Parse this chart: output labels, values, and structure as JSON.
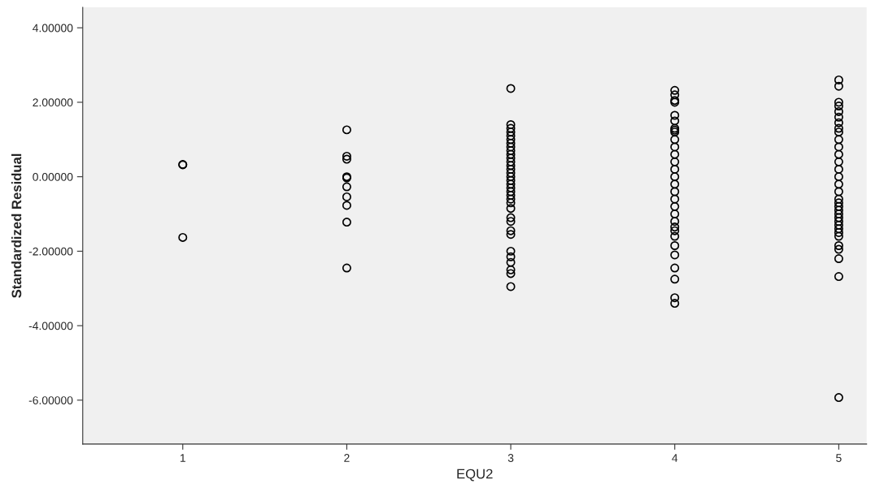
{
  "chart_data": {
    "type": "scatter",
    "xlabel": "EQU2",
    "ylabel": "Standardized Residual",
    "x": [
      1,
      1,
      1,
      2,
      2,
      2,
      2,
      2,
      2,
      2,
      2,
      2,
      2,
      3,
      3,
      3,
      3,
      3,
      3,
      3,
      3,
      3,
      3,
      3,
      3,
      3,
      3,
      3,
      3,
      3,
      3,
      3,
      3,
      3,
      3,
      3,
      3,
      3,
      3,
      3,
      3,
      3,
      3,
      3,
      3,
      3,
      3,
      4,
      4,
      4,
      4,
      4,
      4,
      4,
      4,
      4,
      4,
      4,
      4,
      4,
      4,
      4,
      4,
      4,
      4,
      4,
      4,
      4,
      4,
      4,
      4,
      4,
      4,
      4,
      4,
      4,
      4,
      5,
      5,
      5,
      5,
      5,
      5,
      5,
      5,
      5,
      5,
      5,
      5,
      5,
      5,
      5,
      5,
      5,
      5,
      5,
      5,
      5,
      5,
      5,
      5,
      5,
      5,
      5,
      5,
      5,
      5,
      5,
      5,
      5
    ],
    "values": [
      0.33,
      0.32,
      -1.63,
      1.26,
      0.55,
      0.47,
      0.0,
      -0.03,
      -0.27,
      -0.54,
      -0.77,
      -1.22,
      -2.45,
      2.37,
      1.4,
      1.3,
      1.2,
      1.1,
      1.0,
      0.9,
      0.8,
      0.7,
      0.6,
      0.5,
      0.4,
      0.3,
      0.2,
      0.1,
      0.0,
      -0.1,
      -0.2,
      -0.3,
      -0.4,
      -0.5,
      -0.6,
      -0.7,
      -0.85,
      -1.1,
      -1.2,
      -1.45,
      -1.55,
      -2.0,
      -2.15,
      -2.3,
      -2.5,
      -2.6,
      -2.95,
      2.32,
      2.2,
      2.05,
      2.0,
      1.65,
      1.5,
      1.3,
      1.25,
      1.2,
      1.0,
      0.8,
      0.6,
      0.4,
      0.2,
      0.0,
      -0.2,
      -0.4,
      -0.6,
      -0.8,
      -1.0,
      -1.2,
      -1.35,
      -1.45,
      -1.6,
      -1.85,
      -2.1,
      -2.45,
      -2.75,
      -3.25,
      -3.4,
      2.6,
      2.43,
      2.0,
      1.9,
      1.75,
      1.6,
      1.45,
      1.3,
      1.2,
      1.0,
      0.8,
      0.6,
      0.4,
      0.2,
      0.0,
      -0.2,
      -0.4,
      -0.6,
      -0.7,
      -0.8,
      -0.9,
      -1.0,
      -1.1,
      -1.2,
      -1.3,
      -1.4,
      -1.5,
      -1.6,
      -1.85,
      -1.95,
      -2.2,
      -2.68,
      -5.93
    ],
    "color": "#000000",
    "marker": "circle",
    "xlim": [
      0.39,
      5.17
    ],
    "xticks": [
      1,
      2,
      3,
      4,
      5
    ],
    "ylim": [
      -7.18,
      4.55
    ],
    "yticks": [
      {
        "value": -6,
        "label": "-6.00000"
      },
      {
        "value": -4,
        "label": "-4.00000"
      },
      {
        "value": -2,
        "label": "-2.00000"
      },
      {
        "value": 0,
        "label": "0.00000"
      },
      {
        "value": 2,
        "label": "2.00000"
      },
      {
        "value": 4,
        "label": "4.00000"
      }
    ],
    "grid": false
  }
}
